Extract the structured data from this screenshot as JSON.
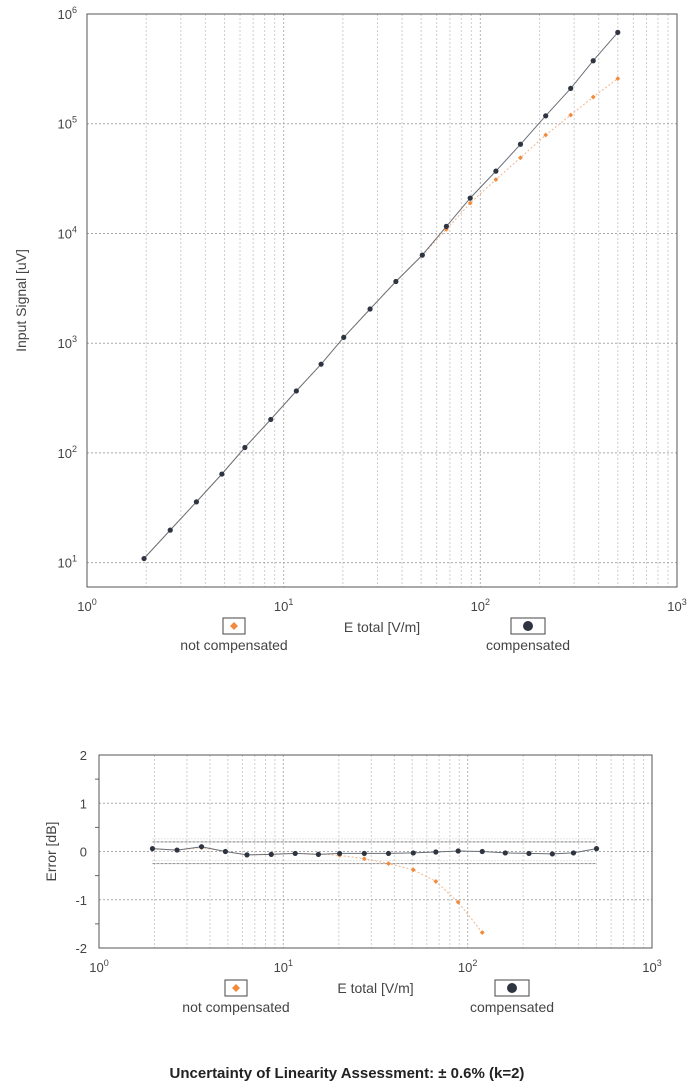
{
  "chart_data": [
    {
      "type": "scatter",
      "title": "",
      "xlabel": "E total [V/m]",
      "ylabel": "Input Signal [uV]",
      "x_scale": "log",
      "y_scale": "log",
      "xlim": [
        1,
        1000
      ],
      "ylim": [
        6,
        1000000
      ],
      "x_ticks": [
        1,
        10,
        100,
        1000
      ],
      "y_ticks": [
        10,
        100,
        1000,
        10000,
        100000,
        1000000
      ],
      "grid": true,
      "legend_position": "bottom",
      "series": [
        {
          "name": "not compensated",
          "color": "#f08a3c",
          "marker": "diamond",
          "x": [
            1.95,
            2.65,
            3.6,
            4.85,
            6.35,
            8.6,
            11.6,
            15.5,
            20.2,
            27.5,
            37.2,
            50.7,
            67.2,
            88.8,
            120,
            160,
            215,
            288,
            375,
            500
          ],
          "y": [
            10.9,
            19.8,
            35.8,
            64.2,
            112,
            202,
            367,
            644,
            1130,
            2050,
            3650,
            6350,
            10900,
            18900,
            31000,
            49000,
            79000,
            120000,
            175000,
            258000
          ]
        },
        {
          "name": "compensated",
          "color": "#2f3540",
          "marker": "circle",
          "x": [
            1.95,
            2.65,
            3.6,
            4.85,
            6.35,
            8.6,
            11.6,
            15.5,
            20.2,
            27.5,
            37.2,
            50.7,
            67.2,
            88.8,
            120,
            160,
            215,
            288,
            375,
            500
          ],
          "y": [
            10.9,
            19.8,
            35.8,
            64.2,
            112,
            202,
            367,
            644,
            1130,
            2050,
            3650,
            6350,
            11600,
            21000,
            37000,
            65000,
            118000,
            210000,
            375000,
            680000
          ]
        }
      ]
    },
    {
      "type": "line",
      "title": "",
      "xlabel": "E total [V/m]",
      "ylabel": "Error [dB]",
      "x_scale": "log",
      "xlim": [
        1,
        1000
      ],
      "ylim": [
        -2,
        2
      ],
      "x_ticks": [
        1,
        10,
        100,
        1000
      ],
      "y_ticks": [
        2,
        1,
        0,
        -1,
        -2
      ],
      "grid": true,
      "legend_position": "bottom",
      "uncertainty_band": [
        -0.25,
        0.2
      ],
      "series": [
        {
          "name": "not compensated",
          "color": "#f08a3c",
          "marker": "diamond",
          "x": [
            1.95,
            2.65,
            3.6,
            4.85,
            6.35,
            8.6,
            11.6,
            15.5,
            20.2,
            27.5,
            37.2,
            50.7,
            67.2,
            88.8,
            120
          ],
          "y": [
            0.05,
            0.03,
            0.08,
            0.0,
            -0.07,
            -0.05,
            -0.04,
            -0.05,
            -0.08,
            -0.15,
            -0.25,
            -0.38,
            -0.62,
            -1.05,
            -1.68
          ]
        },
        {
          "name": "compensated",
          "color": "#2f3540",
          "marker": "circle",
          "x": [
            1.95,
            2.65,
            3.6,
            4.85,
            6.35,
            8.6,
            11.6,
            15.5,
            20.2,
            27.5,
            37.2,
            50.7,
            67.2,
            88.8,
            120,
            160,
            215,
            288,
            375,
            500
          ],
          "y": [
            0.06,
            0.03,
            0.1,
            0.0,
            -0.07,
            -0.06,
            -0.04,
            -0.06,
            -0.04,
            -0.04,
            -0.04,
            -0.03,
            -0.01,
            0.01,
            0.0,
            -0.03,
            -0.04,
            -0.05,
            -0.03,
            0.06
          ]
        }
      ]
    }
  ],
  "footer": {
    "text": "Uncertainty of Linearity Assessment: ± 0.6% (k=2)"
  }
}
